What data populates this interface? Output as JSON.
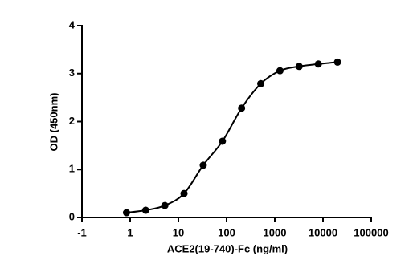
{
  "chart_data": {
    "type": "scatter",
    "x_label": "ACE2(19-740)-Fc (ng/ml)",
    "y_label": "OD (450nm)",
    "xscale": "log",
    "x": [
      0.84,
      2.1,
      5.24,
      13.1,
      32.77,
      81.92,
      204.8,
      512,
      1280,
      3200,
      8000,
      20000
    ],
    "values": [
      0.1,
      0.15,
      0.25,
      0.5,
      1.09,
      1.59,
      2.28,
      2.79,
      3.06,
      3.15,
      3.2,
      3.24
    ],
    "color": "#000000",
    "curve": true,
    "xlim": [
      0.1,
      100000
    ],
    "xticks": [
      {
        "value": 0.1,
        "label": "-1"
      },
      1,
      10,
      100,
      1000,
      10000,
      100000
    ],
    "ylim": [
      0,
      4
    ],
    "yticks": [
      0,
      1,
      2,
      3,
      4
    ]
  }
}
